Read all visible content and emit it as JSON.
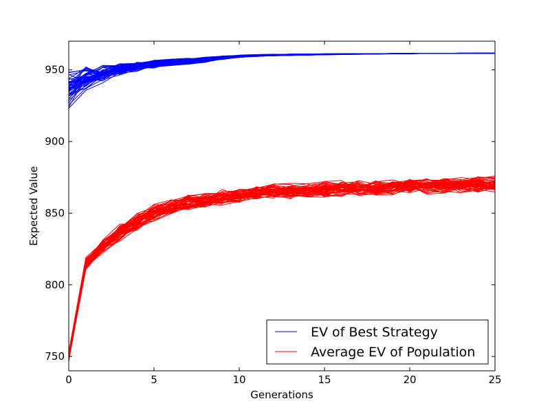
{
  "chart_data": {
    "type": "line",
    "title": "",
    "xlabel": "Generations",
    "ylabel": "Expected Value",
    "xlim": [
      0,
      25
    ],
    "ylim": [
      740,
      970
    ],
    "xticks": [
      0,
      5,
      10,
      15,
      20,
      25
    ],
    "yticks": [
      750,
      800,
      850,
      900,
      950
    ],
    "grid": false,
    "legend_position": "lower-right",
    "x": [
      0,
      1,
      2,
      3,
      4,
      5,
      6,
      7,
      8,
      9,
      10,
      11,
      12,
      13,
      14,
      15,
      16,
      17,
      18,
      19,
      20,
      21,
      22,
      23,
      24,
      25
    ],
    "run_count": 50,
    "series": [
      {
        "name": "EV of Best Strategy",
        "color": "#0000ff",
        "center": [
          938,
          944,
          947,
          950,
          952,
          954,
          955,
          956,
          957,
          958.5,
          959.5,
          960,
          960.3,
          960.5,
          960.7,
          960.9,
          961,
          961.1,
          961.2,
          961.3,
          961.4,
          961.5,
          961.5,
          961.6,
          961.6,
          961.6
        ],
        "spread": [
          20,
          12,
          9,
          7,
          5,
          4,
          3.5,
          3,
          2.5,
          1.8,
          1.3,
          1.1,
          0.9,
          0.8,
          0.7,
          0.6,
          0.5,
          0.4,
          0.3,
          0.25,
          0.2,
          0.15,
          0.1,
          0.1,
          0.1,
          0.1
        ]
      },
      {
        "name": "Average EV of Population",
        "color": "#ff0000",
        "center": [
          750,
          815,
          827,
          836,
          844,
          850,
          854,
          857,
          859,
          861,
          862.5,
          864,
          865,
          865.5,
          866,
          866.5,
          867,
          867.5,
          868,
          868.5,
          869,
          869,
          869.3,
          869.5,
          869.8,
          870
        ],
        "spread": [
          6,
          7,
          8,
          9,
          9,
          9,
          8,
          8,
          8,
          8,
          8,
          8,
          8,
          8,
          8,
          8,
          8,
          8,
          8,
          8,
          8,
          8,
          8,
          8,
          8,
          8
        ]
      }
    ]
  }
}
